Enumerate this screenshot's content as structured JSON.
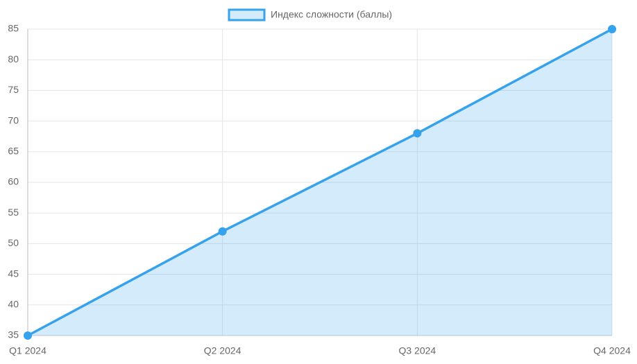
{
  "chart_data": {
    "type": "line",
    "categories": [
      "Q1 2024",
      "Q2 2024",
      "Q3 2024",
      "Q4 2024"
    ],
    "series": [
      {
        "name": "Индекс сложности (баллы)",
        "color": "#36a2eb",
        "values": [
          35,
          52,
          68,
          85
        ]
      }
    ],
    "ylim": [
      35,
      85
    ],
    "yticks": [
      35,
      40,
      45,
      50,
      55,
      60,
      65,
      70,
      75,
      80,
      85
    ],
    "grid": true,
    "fill": true,
    "legend": "top"
  }
}
